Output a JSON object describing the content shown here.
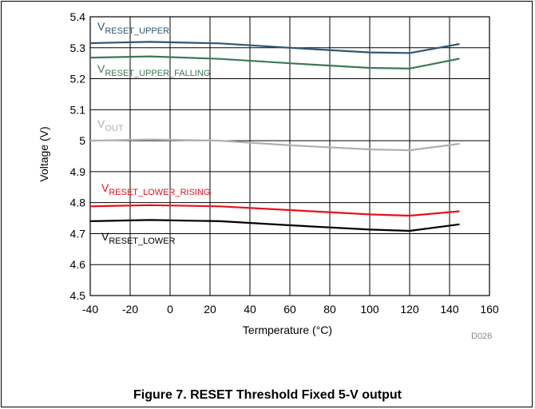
{
  "caption": "Figure 7. RESET Threshold Fixed 5-V output",
  "figure_code": "D026",
  "chart_data": {
    "type": "line",
    "xlabel": "Termperature (°C)",
    "ylabel": "Voltage (V)",
    "xlim": [
      -40,
      160
    ],
    "ylim": [
      4.5,
      5.4
    ],
    "xticks": [
      -40,
      -20,
      0,
      20,
      40,
      60,
      80,
      100,
      120,
      140,
      160
    ],
    "yticks": [
      4.5,
      4.6,
      4.7,
      4.8,
      4.9,
      5,
      5.1,
      5.2,
      5.3,
      5.4
    ],
    "x_tick_labels": [
      "-40",
      "-20",
      "0",
      "20",
      "40",
      "60",
      "80",
      "100",
      "120",
      "140",
      "160"
    ],
    "y_tick_labels": [
      "4.5",
      "4.6",
      "4.7",
      "4.8",
      "4.9",
      "5",
      "5.1",
      "5.2",
      "5.3",
      "5.4"
    ],
    "grid": true,
    "series": [
      {
        "name": "V",
        "subscript": "RESET_UPPER",
        "color": "#2e5673",
        "x": [
          -40,
          -10,
          25,
          60,
          100,
          120,
          145
        ],
        "y": [
          5.315,
          5.319,
          5.314,
          5.3,
          5.285,
          5.283,
          5.312
        ]
      },
      {
        "name": "V",
        "subscript": "RESET_UPPER_FALLING",
        "color": "#3b7a56",
        "x": [
          -40,
          -10,
          25,
          60,
          100,
          120,
          145
        ],
        "y": [
          5.268,
          5.272,
          5.264,
          5.25,
          5.235,
          5.233,
          5.265
        ]
      },
      {
        "name": "V",
        "subscript": "OUT",
        "color": "#b0b0b0",
        "x": [
          -40,
          -10,
          25,
          60,
          100,
          120,
          145
        ],
        "y": [
          5.0,
          5.004,
          5.0,
          4.985,
          4.972,
          4.969,
          4.99
        ]
      },
      {
        "name": "V",
        "subscript": "RESET_LOWER_RISING",
        "color": "#e8101a",
        "x": [
          -40,
          -10,
          25,
          60,
          100,
          120,
          145
        ],
        "y": [
          4.788,
          4.792,
          4.788,
          4.776,
          4.762,
          4.758,
          4.772
        ]
      },
      {
        "name": "V",
        "subscript": "RESET_LOWER",
        "color": "#000000",
        "x": [
          -40,
          -10,
          25,
          60,
          100,
          120,
          145
        ],
        "y": [
          4.74,
          4.744,
          4.74,
          4.727,
          4.713,
          4.709,
          4.73
        ]
      }
    ]
  }
}
